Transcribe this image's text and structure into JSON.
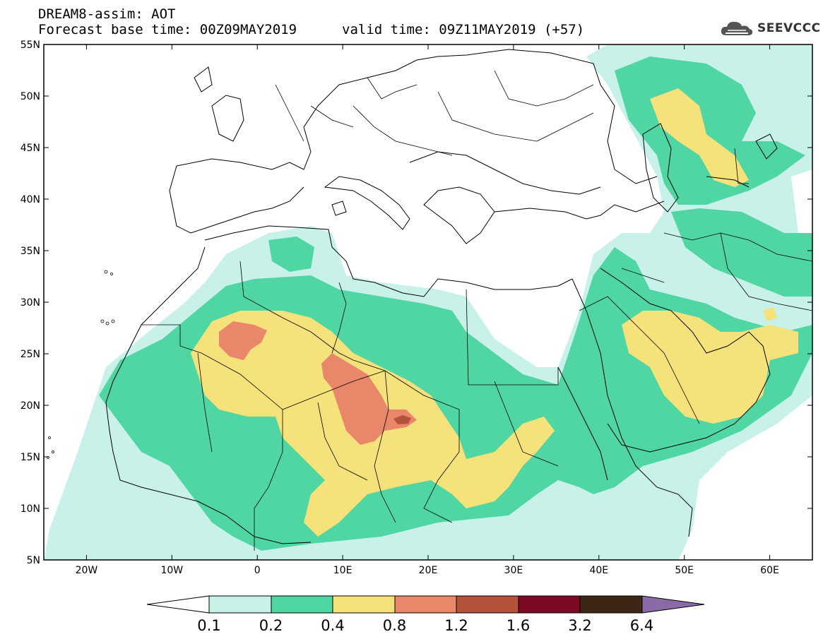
{
  "header": {
    "title": "DREAM8-assim: AOT",
    "base_time": "Forecast base time: 00Z09MAY2019",
    "valid_time": "valid time: 09Z11MAY2019 (+57)"
  },
  "logo": {
    "text": "SEEVCCC",
    "icon": "cloud-logo-icon"
  },
  "map": {
    "lat_ticks": [
      "55N",
      "50N",
      "45N",
      "40N",
      "35N",
      "30N",
      "25N",
      "20N",
      "15N",
      "10N",
      "5N"
    ],
    "lon_ticks": [
      "20W",
      "10W",
      "0",
      "10E",
      "20E",
      "30E",
      "40E",
      "50E",
      "60E"
    ],
    "lat_range": [
      5,
      55
    ],
    "lon_range": [
      -25,
      65
    ]
  },
  "colorbar": {
    "labels": [
      "0.1",
      "0.2",
      "0.4",
      "0.8",
      "1.2",
      "1.6",
      "3.2",
      "6.4"
    ],
    "colors": [
      "#ffffff",
      "#c8f1e9",
      "#4fd6a3",
      "#f5e27a",
      "#e8876a",
      "#b4523c",
      "#7c0a22",
      "#3e2614",
      "#8b6aa8"
    ]
  },
  "legend_colors": {
    "c01": "#c8f1e9",
    "c02": "#4fd6a3",
    "c04": "#f5e27a",
    "c08": "#e8876a",
    "c12": "#b4523c"
  }
}
